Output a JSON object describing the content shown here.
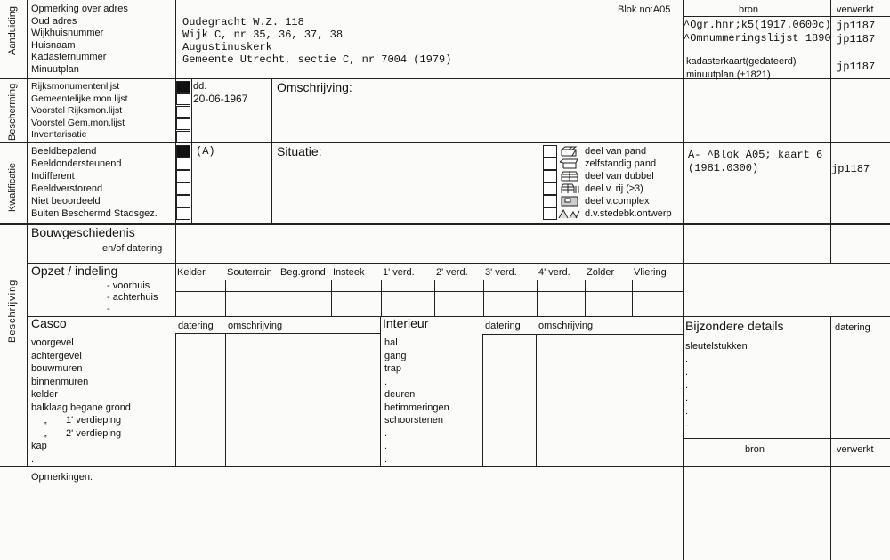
{
  "aanduiding": {
    "section_label": "Aanduiding",
    "labels": [
      "Opmerking over adres",
      "Oud adres",
      "Wijkhuisnummer",
      "Huisnaam",
      "Kadasternummer",
      "Minuutplan"
    ],
    "values": [
      "Oudegracht W.Z. 118",
      "Wijk C, nr 35, 36, 37, 38",
      "Augustinuskerk",
      "Gemeente Utrecht, sectie C, nr 7004 (1979)"
    ],
    "blok": "Blok no:A05",
    "bron_header": "bron",
    "verwerkt_header": "verwerkt",
    "bron_entries": [
      "^Ogr.hnr;k5(1917.0600c)",
      "^Omnummeringslijst 1890",
      "kadasterkaart(gedateerd)",
      "minuutplan (±1821)"
    ],
    "verwerkt_entries": [
      "jp1187",
      "jp1187",
      "jp1187"
    ]
  },
  "bescherming": {
    "section_label": "Bescherming",
    "items": [
      {
        "label": "Rijksmonumentenlijst",
        "checked": true
      },
      {
        "label": "Gemeentelijke mon.lijst",
        "checked": false
      },
      {
        "label": "Voorstel Rijksmon.lijst",
        "checked": false
      },
      {
        "label": "Voorstel Gem.mon.lijst",
        "checked": false
      },
      {
        "label": "Inventarisatie",
        "checked": false
      }
    ],
    "dd_label": "dd.",
    "date": "20-06-1967",
    "omschrijving_label": "Omschrijving:"
  },
  "kwalificatie": {
    "section_label": "Kwalificatie",
    "items": [
      {
        "label": "Beeldbepalend",
        "checked": true
      },
      {
        "label": "Beeldondersteunend",
        "checked": false
      },
      {
        "label": "Indifferent",
        "checked": false
      },
      {
        "label": "Beeldverstorend",
        "checked": false
      },
      {
        "label": "Niet  beoordeeld",
        "checked": false
      },
      {
        "label": "Buiten Beschermd Stadsgez.",
        "checked": false
      }
    ],
    "value": "(A)",
    "situatie_label": "Situatie:",
    "situatie_options": [
      "deel van pand",
      "zelfstandig pand",
      "deel van dubbel",
      "deel v. rij  (≥3)",
      "deel v.complex",
      "d.v.stedebk.ontwerp"
    ],
    "bron_entries": [
      "A- ^Blok A05; kaart 6",
      "(1981.0300)"
    ],
    "verwerkt": "jp1187"
  },
  "beschrijving": {
    "section_label": "Beschrijving",
    "bouwgeschiedenis": "Bouwgeschiedenis",
    "bouw_sub": "en/of datering",
    "opzet": "Opzet / indeling",
    "opzet_columns": [
      "Kelder",
      "Souterrain",
      "Beg.grond",
      "Insteek",
      "1' verd.",
      "2' verd.",
      "3' verd.",
      "4' verd.",
      "Zolder",
      "Vliering"
    ],
    "opzet_rows": [
      "- voorhuis",
      "- achterhuis",
      "-"
    ],
    "casco": "Casco",
    "casco_datering": "datering",
    "casco_omschrijving": "omschrijving",
    "casco_items": [
      "voorgevel",
      "achtergevel",
      "bouwmuren",
      "binnenmuren",
      "kelder",
      "balklaag begane grond",
      "„       1' verdieping",
      "„       2' verdieping",
      "kap",
      "."
    ],
    "interieur": "Interieur",
    "interieur_datering": "datering",
    "interieur_omschrijving": "omschrijving",
    "interieur_items": [
      "hal",
      "gang",
      "trap",
      ".",
      "deuren",
      "betimmeringen",
      "schoorstenen",
      ".",
      ".",
      "."
    ],
    "bijzondere": "Bijzondere details",
    "bijzondere_datering": "datering",
    "bijzondere_items": [
      "sleutelstukken",
      ".",
      ".",
      ".",
      ".",
      ".",
      "."
    ],
    "bron": "bron",
    "verwerkt": "verwerkt"
  },
  "opmerkingen": "Opmerkingen:"
}
